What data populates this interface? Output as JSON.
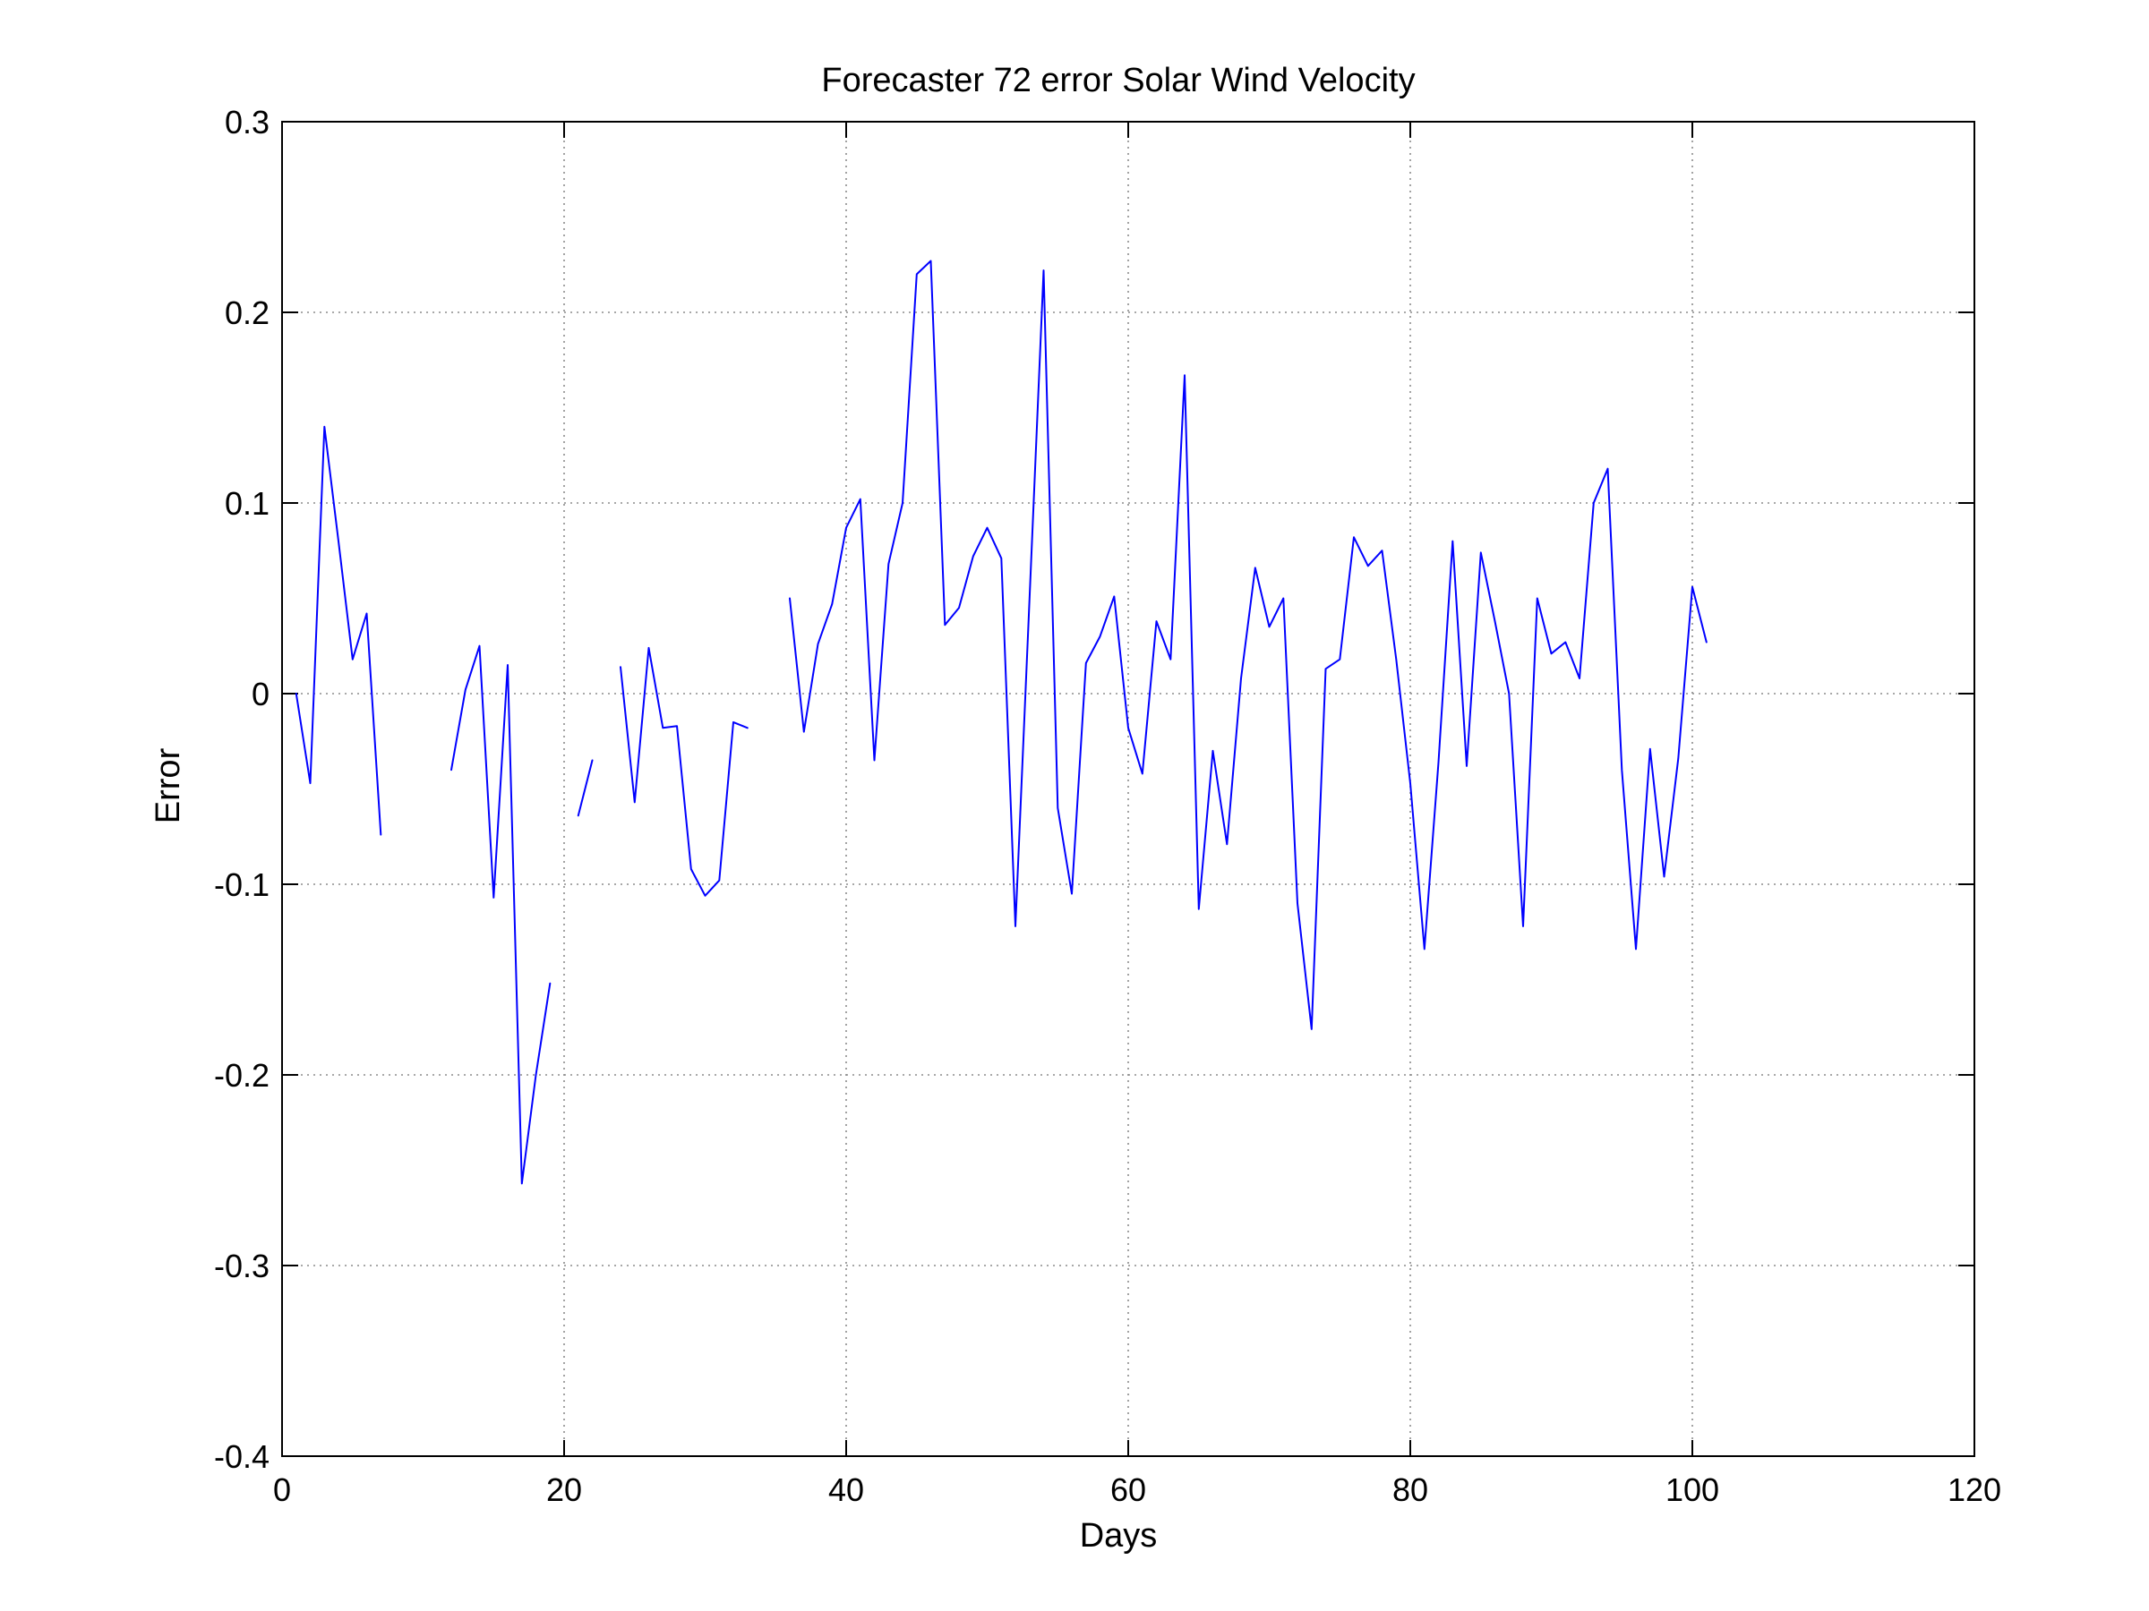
{
  "chart_data": {
    "type": "line",
    "title": "Forecaster 72 error  Solar Wind Velocity",
    "xlabel": "Days",
    "ylabel": "Error",
    "xlim": [
      0,
      120
    ],
    "ylim": [
      -0.4,
      0.3
    ],
    "xticks": [
      0,
      20,
      40,
      60,
      80,
      100,
      120
    ],
    "xtick_labels": [
      "0",
      "20",
      "40",
      "60",
      "80",
      "100",
      "120"
    ],
    "yticks": [
      0.3,
      0.2,
      0.1,
      0,
      -0.1,
      -0.2,
      -0.3,
      -0.4
    ],
    "ytick_labels": [
      "0.3",
      "0.2",
      "0.1",
      "0",
      "-0.1",
      "-0.2",
      "-0.3",
      "-0.4"
    ],
    "grid": true,
    "line_color": "#0000ff",
    "series": [
      {
        "x": [
          1,
          2,
          3,
          4,
          5,
          6,
          7,
          8,
          9,
          10,
          11,
          12,
          13,
          14,
          15,
          16,
          17,
          18,
          19,
          20,
          21,
          22,
          23,
          24,
          25,
          26,
          27,
          28,
          29,
          30,
          31,
          32,
          33,
          34,
          35,
          36,
          37,
          38,
          39,
          40,
          41,
          42,
          43,
          44,
          45,
          46,
          47,
          48,
          49,
          50,
          51,
          52,
          53,
          54,
          55,
          56,
          57,
          58,
          59,
          60,
          61,
          62,
          63,
          64,
          65,
          66,
          67,
          68,
          69,
          70,
          71,
          72,
          73,
          74,
          75,
          76,
          77,
          78,
          79,
          80,
          81,
          82,
          83,
          84,
          85,
          86,
          87,
          88,
          89,
          90,
          91,
          92,
          93,
          94,
          95,
          96,
          97,
          98,
          99,
          100,
          101
        ],
        "y": [
          0.0,
          -0.047,
          0.14,
          0.08,
          0.018,
          0.042,
          -0.074,
          null,
          null,
          null,
          null,
          -0.04,
          0.002,
          0.025,
          -0.107,
          0.015,
          -0.257,
          -0.2,
          -0.152,
          null,
          -0.064,
          -0.035,
          null,
          0.014,
          -0.057,
          0.024,
          -0.018,
          -0.017,
          -0.092,
          -0.106,
          -0.098,
          -0.015,
          -0.018,
          null,
          null,
          0.05,
          -0.02,
          0.026,
          0.047,
          0.087,
          0.102,
          -0.035,
          0.068,
          0.1,
          0.22,
          0.227,
          0.036,
          0.045,
          0.072,
          0.087,
          0.071,
          -0.122,
          0.05,
          0.222,
          -0.06,
          -0.105,
          0.016,
          0.03,
          0.051,
          -0.018,
          -0.042,
          0.038,
          0.018,
          0.167,
          -0.113,
          -0.03,
          -0.079,
          0.008,
          0.066,
          0.035,
          0.05,
          -0.11,
          -0.176,
          0.013,
          0.018,
          0.082,
          0.067,
          0.075,
          0.018,
          -0.047,
          -0.134,
          -0.036,
          0.08,
          -0.038,
          0.074,
          0.038,
          0.0,
          -0.122,
          0.05,
          0.021,
          0.027,
          0.008,
          0.1,
          0.118,
          -0.04,
          -0.134,
          -0.029,
          -0.096,
          -0.034,
          0.056,
          0.027
        ]
      }
    ]
  }
}
